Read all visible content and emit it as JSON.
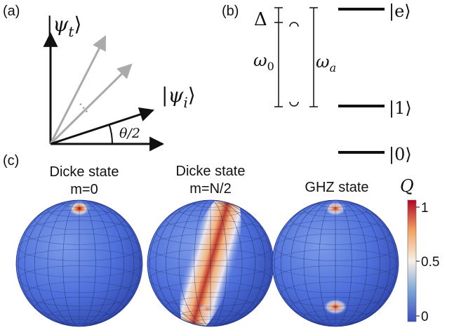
{
  "panel_a": {
    "label": "(a)",
    "ket_target": "|ψ",
    "ket_target_sub": "t",
    "ket_initial": "|ψ",
    "ket_initial_sub": "i",
    "ket_close": "⟩",
    "angle_label": "θ/2",
    "dots": "⋯"
  },
  "panel_b": {
    "label": "(b)",
    "delta": "Δ",
    "omega0": "ω",
    "omega0_sub": "0",
    "omegaa": "ω",
    "omegaa_sub": "a",
    "level_e": "|e⟩",
    "level_1": "|1⟩",
    "level_0": "|0⟩"
  },
  "panel_c": {
    "label": "(c)",
    "spheres": [
      {
        "title_line1": "Dicke state",
        "title_line2": "m=0"
      },
      {
        "title_line1": "Dicke state",
        "title_line2": "m=N/2"
      },
      {
        "title_line1": "GHZ state",
        "title_line2": ""
      }
    ],
    "colorbar": {
      "title": "Q",
      "ticks": [
        "1",
        "0.5",
        "0"
      ],
      "colors": [
        "#b40426",
        "#f4a15d",
        "#f7f0e8",
        "#7aa3d8",
        "#3a4cc0"
      ]
    }
  }
}
